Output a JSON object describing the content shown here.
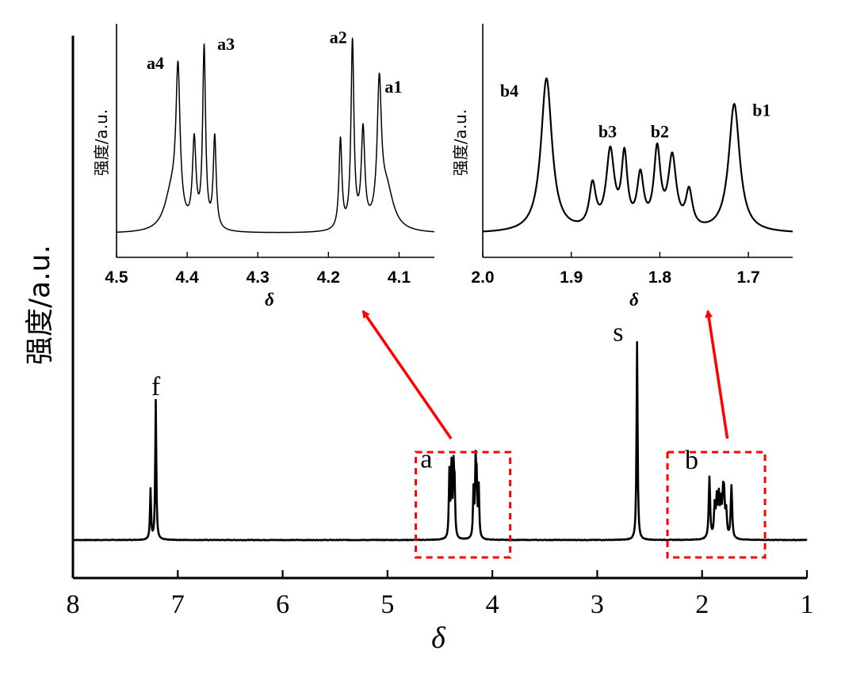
{
  "colors": {
    "line": "#000000",
    "arrow": "#ff0000",
    "box": "#ff0000"
  },
  "chart_data": [
    {
      "type": "line",
      "panel": "main",
      "xlabel": "δ",
      "ylabel": "强度/a.u.",
      "xlim": [
        8,
        1
      ],
      "x_reversed": true,
      "ticks": [
        8,
        7,
        6,
        5,
        4,
        3,
        2,
        1
      ],
      "tick_labels": [
        "8",
        "7",
        "6",
        "5",
        "4",
        "3",
        "2",
        "1"
      ],
      "peaks": [
        {
          "x": 7.26,
          "h": 0.36,
          "w": 0.006
        },
        {
          "x": 7.21,
          "h": 1.0,
          "w": 0.006
        },
        {
          "x": 4.41,
          "h": 0.47,
          "w": 0.006
        },
        {
          "x": 4.39,
          "h": 0.5,
          "w": 0.006
        },
        {
          "x": 4.37,
          "h": 0.46,
          "w": 0.006
        },
        {
          "x": 4.36,
          "h": 0.34,
          "w": 0.006
        },
        {
          "x": 4.18,
          "h": 0.34,
          "w": 0.006
        },
        {
          "x": 4.16,
          "h": 0.5,
          "w": 0.006
        },
        {
          "x": 4.15,
          "h": 0.37,
          "w": 0.006
        },
        {
          "x": 4.13,
          "h": 0.36,
          "w": 0.006
        },
        {
          "x": 2.62,
          "h": 1.42,
          "w": 0.006
        },
        {
          "x": 1.93,
          "h": 0.44,
          "w": 0.008
        },
        {
          "x": 1.88,
          "h": 0.22,
          "w": 0.008
        },
        {
          "x": 1.86,
          "h": 0.26,
          "w": 0.008
        },
        {
          "x": 1.84,
          "h": 0.27,
          "w": 0.008
        },
        {
          "x": 1.82,
          "h": 0.22,
          "w": 0.008
        },
        {
          "x": 1.8,
          "h": 0.26,
          "w": 0.008
        },
        {
          "x": 1.79,
          "h": 0.24,
          "w": 0.008
        },
        {
          "x": 1.77,
          "h": 0.18,
          "w": 0.008
        },
        {
          "x": 1.72,
          "h": 0.38,
          "w": 0.008
        }
      ],
      "peak_labels": [
        {
          "text": "f",
          "x": 7.21,
          "y": 1.04
        },
        {
          "text": "a",
          "x": 4.63,
          "y": 0.52
        },
        {
          "text": "s",
          "x": 2.8,
          "y": 1.43
        },
        {
          "text": "b",
          "x": 2.1,
          "y": 0.51
        }
      ],
      "highlight_boxes": [
        {
          "name": "a",
          "x": [
            4.73,
            3.83
          ]
        },
        {
          "name": "b",
          "x": [
            2.33,
            1.4
          ]
        }
      ]
    },
    {
      "type": "line",
      "panel": "inset-a",
      "xlabel": "δ",
      "ylabel": "强度/a.u.",
      "xlim": [
        4.5,
        4.05
      ],
      "x_reversed": true,
      "ticks": [
        4.5,
        4.4,
        4.3,
        4.2,
        4.1
      ],
      "tick_labels": [
        "4.5",
        "4.4",
        "4.3",
        "4.2",
        "4.1"
      ],
      "peaks": [
        {
          "x": 4.422,
          "h": 0.18,
          "w": 0.012
        },
        {
          "x": 4.413,
          "h": 0.68,
          "w": 0.0035
        },
        {
          "x": 4.39,
          "h": 0.4,
          "w": 0.003
        },
        {
          "x": 4.376,
          "h": 0.84,
          "w": 0.0025
        },
        {
          "x": 4.361,
          "h": 0.43,
          "w": 0.0025
        },
        {
          "x": 4.183,
          "h": 0.42,
          "w": 0.0025
        },
        {
          "x": 4.166,
          "h": 0.87,
          "w": 0.0025
        },
        {
          "x": 4.151,
          "h": 0.45,
          "w": 0.003
        },
        {
          "x": 4.128,
          "h": 0.62,
          "w": 0.0035
        },
        {
          "x": 4.118,
          "h": 0.2,
          "w": 0.012
        }
      ],
      "peak_labels": [
        {
          "text": "a4",
          "x": 4.445,
          "y": 0.77
        },
        {
          "text": "a3",
          "x": 4.345,
          "y": 0.86
        },
        {
          "text": "a2",
          "x": 4.186,
          "y": 0.89
        },
        {
          "text": "a1",
          "x": 4.108,
          "y": 0.66
        }
      ]
    },
    {
      "type": "line",
      "panel": "inset-b",
      "xlabel": "δ",
      "ylabel": "强度/a.u.",
      "xlim": [
        2.0,
        1.65
      ],
      "x_reversed": true,
      "ticks": [
        2.0,
        1.9,
        1.8,
        1.7
      ],
      "tick_labels": [
        "2.0",
        "1.9",
        "1.8",
        "1.7"
      ],
      "peaks": [
        {
          "x": 1.928,
          "h": 0.72,
          "w": 0.0075
        },
        {
          "x": 1.876,
          "h": 0.2,
          "w": 0.0045
        },
        {
          "x": 1.856,
          "h": 0.36,
          "w": 0.0055
        },
        {
          "x": 1.84,
          "h": 0.33,
          "w": 0.004
        },
        {
          "x": 1.822,
          "h": 0.24,
          "w": 0.0045
        },
        {
          "x": 1.803,
          "h": 0.36,
          "w": 0.0045
        },
        {
          "x": 1.786,
          "h": 0.33,
          "w": 0.0055
        },
        {
          "x": 1.767,
          "h": 0.17,
          "w": 0.0045
        },
        {
          "x": 1.716,
          "h": 0.6,
          "w": 0.0075
        }
      ],
      "peak_labels": [
        {
          "text": "b4",
          "x": 1.97,
          "y": 0.64
        },
        {
          "text": "b3",
          "x": 1.859,
          "y": 0.45
        },
        {
          "text": "b2",
          "x": 1.8,
          "y": 0.45
        },
        {
          "text": "b1",
          "x": 1.685,
          "y": 0.55
        }
      ]
    }
  ]
}
